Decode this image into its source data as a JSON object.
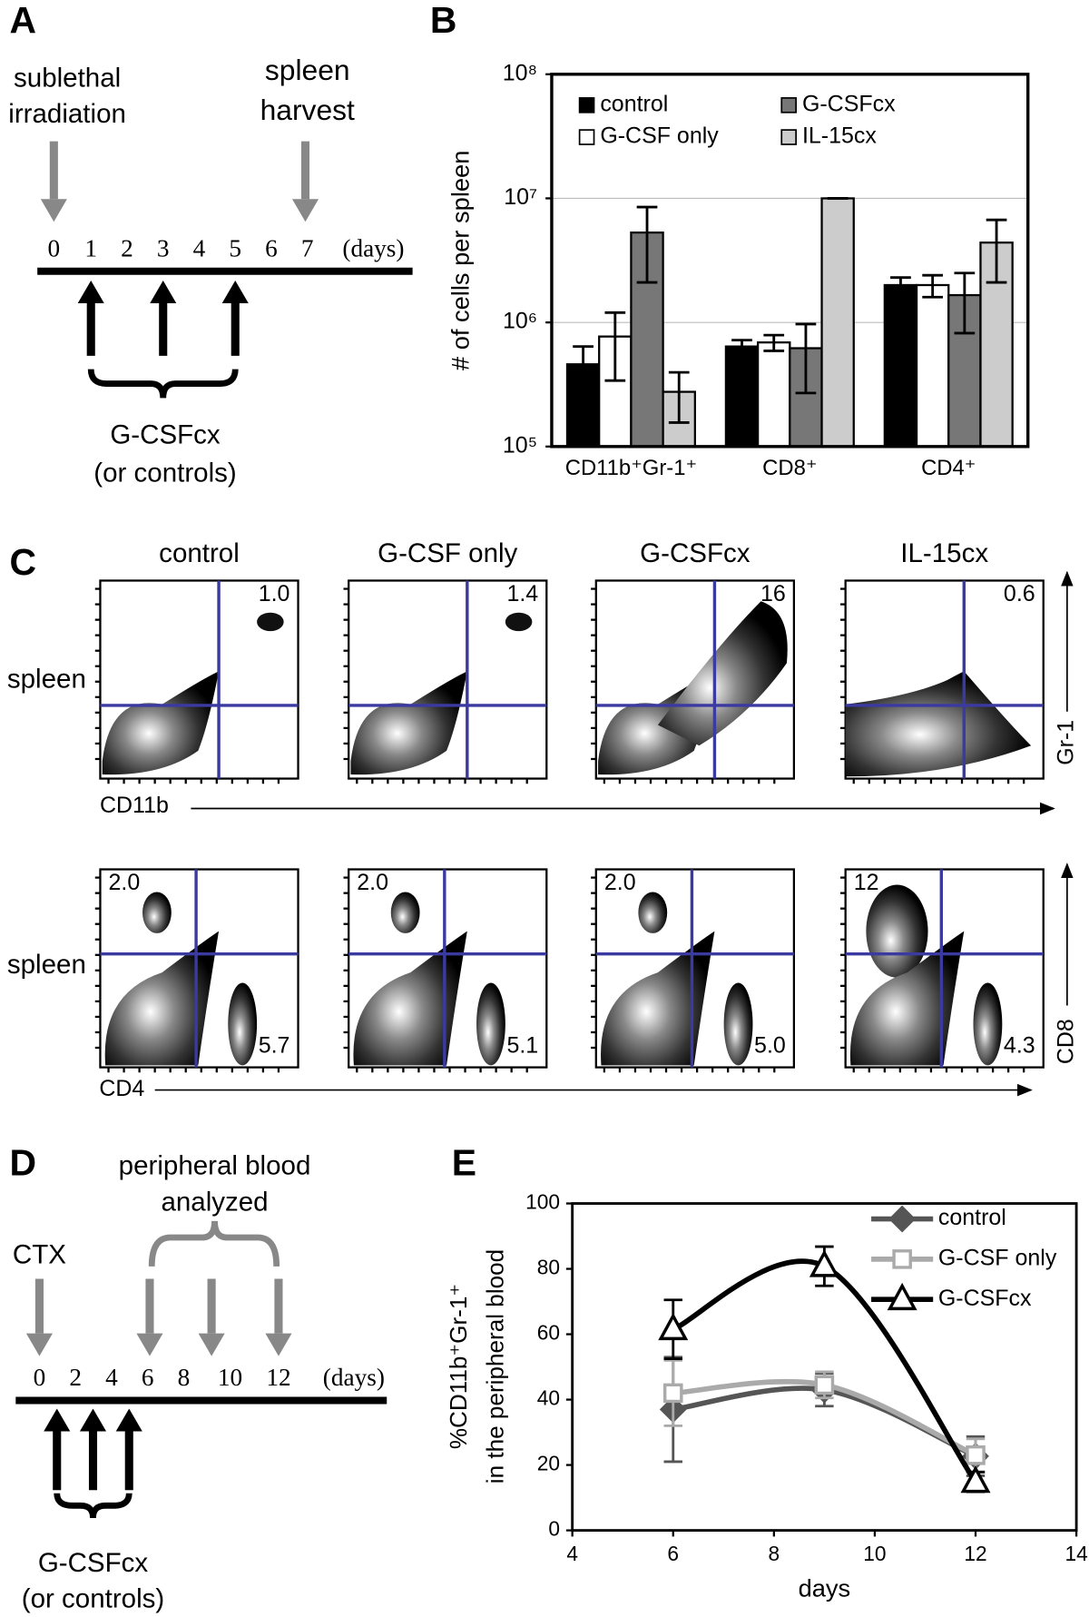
{
  "panel_labels": [
    "A",
    "B",
    "C",
    "D",
    "E"
  ],
  "panel_a": {
    "irradiation": [
      "sublethal",
      "irradiation"
    ],
    "harvest": [
      "spleen",
      "harvest"
    ],
    "days": [
      "0",
      "1",
      "2",
      "3",
      "4",
      "5",
      "6",
      "7"
    ],
    "unit": "(days)",
    "treatment": [
      "G-CSFcx",
      "(or controls)"
    ]
  },
  "panel_c": {
    "columns": [
      "control",
      "G-CSF only",
      "G-CSFcx",
      "IL-15cx"
    ],
    "rows": [
      {
        "label": "spleen",
        "x_axis": "CD11b",
        "y_axis": "Gr-1",
        "upper_right": [
          "1.0",
          "1.4",
          "16",
          "0.6"
        ]
      },
      {
        "label": "spleen",
        "x_axis": "CD4",
        "y_axis": "CD8",
        "upper_left": [
          "2.0",
          "2.0",
          "2.0",
          "12"
        ],
        "lower_right": [
          "5.7",
          "5.1",
          "5.0",
          "4.3"
        ]
      }
    ]
  },
  "panel_d": {
    "event": "CTX",
    "analysis": [
      "peripheral blood",
      "analyzed"
    ],
    "days": [
      "0",
      "2",
      "4",
      "6",
      "8",
      "10",
      "12"
    ],
    "unit": "(days)",
    "treatment": [
      "G-CSFcx",
      "(or controls)"
    ]
  },
  "chart_data": [
    {
      "type": "bar",
      "ylabel": "# of cells per spleen",
      "log_scale": true,
      "grid": true,
      "categories": [
        "CD11b⁺Gr-1⁺",
        "CD8⁺",
        "CD4⁺"
      ],
      "ylim": [
        100000,
        100000000
      ],
      "yticks": [
        {
          "value": 100000,
          "label": "10⁵"
        },
        {
          "value": 1000000,
          "label": "10⁶"
        },
        {
          "value": 10000000,
          "label": "10⁷"
        },
        {
          "value": 100000000,
          "label": "10⁸"
        }
      ],
      "series": [
        {
          "name": "control",
          "color": "#000000",
          "values": [
            460000,
            640000,
            2000000
          ],
          "errors": [
            180000,
            80000,
            300000
          ]
        },
        {
          "name": "G-CSF only",
          "color": "#ffffff",
          "values": [
            770000,
            690000,
            2000000
          ],
          "errors": [
            430000,
            100000,
            400000
          ]
        },
        {
          "name": "G-CSFcx",
          "color": "#777777",
          "values": [
            5300000,
            620000,
            1660000
          ],
          "errors": [
            3200000,
            350000,
            840000
          ]
        },
        {
          "name": "IL-15cx",
          "color": "#cccccc",
          "values": [
            276000,
            10000000,
            4400000
          ],
          "errors": [
            120000,
            0,
            2300000
          ]
        }
      ]
    },
    {
      "type": "line",
      "xlabel": "days",
      "ylabel": [
        "%CD11b⁺Gr-1⁺",
        "in the peripheral blood"
      ],
      "x": [
        6,
        9,
        12
      ],
      "xlim": [
        4,
        14
      ],
      "xticks": [
        4,
        6,
        8,
        10,
        12,
        14
      ],
      "ylim": [
        0,
        100
      ],
      "yticks": [
        0,
        20,
        40,
        60,
        80,
        100
      ],
      "series": [
        {
          "name": "control",
          "color": "#555555",
          "marker": "diamond",
          "values": [
            37,
            43,
            22.7
          ],
          "errors": [
            16,
            5,
            6
          ]
        },
        {
          "name": "G-CSF only",
          "color": "#aaaaaa",
          "marker": "square",
          "values": [
            42,
            44.5,
            23
          ],
          "errors": [
            10,
            4,
            5
          ]
        },
        {
          "name": "G-CSFcx",
          "color": "#000000",
          "marker": "triangle",
          "values": [
            61.5,
            80.8,
            14.8
          ],
          "errors": [
            9,
            6,
            3
          ]
        }
      ]
    }
  ]
}
